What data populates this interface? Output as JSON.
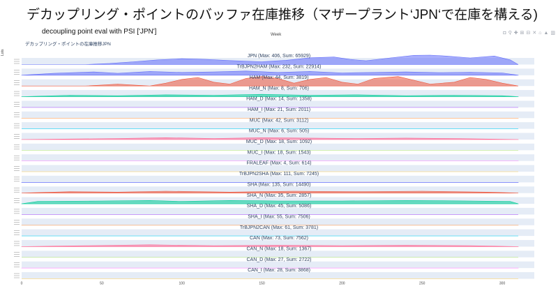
{
  "slide": {
    "title": "デカップリング・ポイントのバッファ在庫推移（マザープラント‘JPN‘で在庫を構える)",
    "subtitle": "decoupling point eval with PSI  ['JPN']"
  },
  "modebar": {
    "icons": [
      "camera-icon",
      "zoom-icon",
      "pan-icon",
      "zoom-in-icon",
      "zoom-out-icon",
      "autoscale-icon",
      "reset-axes-icon",
      "spike-lines-icon",
      "plotly-logo-icon"
    ],
    "glyphs": [
      "◘",
      "⚲",
      "✚",
      "⊞",
      "⊟",
      "✕",
      "⌂",
      "▲",
      "▥"
    ]
  },
  "chart_data": {
    "type": "area",
    "title": "デカップリング・ポイントの在庫推移JPN",
    "xlabel": "Week",
    "ylabel": "Lots",
    "xlim": [
      0,
      320
    ],
    "x_ticks": [
      0,
      50,
      100,
      150,
      200,
      250,
      300
    ],
    "data_x_range": [
      0,
      310
    ],
    "series": [
      {
        "name": "JPN",
        "max": 406,
        "sum": 65929,
        "label": "JPN (Max: 406, Sum: 65929)",
        "color": "#636efa",
        "profile": [
          [
            0,
            0
          ],
          [
            40,
            0
          ],
          [
            55,
            0.12
          ],
          [
            70,
            0.3
          ],
          [
            85,
            0.5
          ],
          [
            100,
            0.62
          ],
          [
            115,
            0.55
          ],
          [
            130,
            0.42
          ],
          [
            150,
            0.3
          ],
          [
            165,
            0.45
          ],
          [
            180,
            0.72
          ],
          [
            195,
            0.8
          ],
          [
            205,
            0.55
          ],
          [
            215,
            0.4
          ],
          [
            230,
            0.7
          ],
          [
            245,
            0.98
          ],
          [
            255,
            1.0
          ],
          [
            265,
            0.9
          ],
          [
            280,
            0.7
          ],
          [
            295,
            0.9
          ],
          [
            305,
            0.5
          ],
          [
            310,
            0
          ]
        ]
      },
      {
        "name": "TrBJPN2HAM",
        "max": 232,
        "sum": 22914,
        "label": "TrBJPN2HAM (Max: 232, Sum: 22914)",
        "color": "#636efa",
        "profile": [
          [
            0,
            0
          ],
          [
            20,
            0.2
          ],
          [
            45,
            0.35
          ],
          [
            60,
            0.2
          ],
          [
            80,
            0.4
          ],
          [
            100,
            0.3
          ],
          [
            120,
            0.35
          ],
          [
            140,
            0.45
          ],
          [
            160,
            0.3
          ],
          [
            180,
            0.4
          ],
          [
            200,
            0.25
          ],
          [
            220,
            0.3
          ],
          [
            240,
            0.35
          ],
          [
            260,
            0.28
          ],
          [
            280,
            0.32
          ],
          [
            300,
            0.25
          ],
          [
            310,
            0
          ]
        ]
      },
      {
        "name": "HAM",
        "max": 44,
        "sum": 3819,
        "label": "HAM (Max: 44, Sum: 3819)",
        "color": "#ef553b",
        "profile": [
          [
            0,
            0
          ],
          [
            40,
            0
          ],
          [
            50,
            0.1
          ],
          [
            60,
            0.2
          ],
          [
            70,
            0.1
          ],
          [
            80,
            0
          ],
          [
            90,
            0.3
          ],
          [
            100,
            0.7
          ],
          [
            110,
            0.9
          ],
          [
            120,
            0.4
          ],
          [
            130,
            0.2
          ],
          [
            140,
            0.8
          ],
          [
            150,
            1.0
          ],
          [
            160,
            0.8
          ],
          [
            170,
            0.3
          ],
          [
            180,
            0.7
          ],
          [
            190,
            0.9
          ],
          [
            200,
            0.4
          ],
          [
            210,
            0.2
          ],
          [
            220,
            0.8
          ],
          [
            235,
            1.0
          ],
          [
            245,
            0.6
          ],
          [
            255,
            0.2
          ],
          [
            270,
            0.4
          ],
          [
            280,
            0.9
          ],
          [
            290,
            0.7
          ],
          [
            300,
            0.3
          ],
          [
            310,
            0
          ]
        ]
      },
      {
        "name": "HAM_N",
        "max": 8,
        "sum": 706,
        "label": "HAM_N (Max: 8, Sum: 706)",
        "color": "#00cc96",
        "profile": [
          [
            0,
            0
          ],
          [
            30,
            0.15
          ],
          [
            60,
            0.1
          ],
          [
            90,
            0.2
          ],
          [
            120,
            0.15
          ],
          [
            150,
            0.25
          ],
          [
            180,
            0.15
          ],
          [
            210,
            0.2
          ],
          [
            240,
            0.1
          ],
          [
            270,
            0.15
          ],
          [
            300,
            0.1
          ],
          [
            310,
            0
          ]
        ]
      },
      {
        "name": "HAM_D",
        "max": 14,
        "sum": 1358,
        "label": "HAM_D (Max: 14, Sum: 1358)",
        "color": "#ab63fa",
        "profile": [
          [
            0,
            0
          ],
          [
            310,
            0
          ]
        ]
      },
      {
        "name": "HAM_I",
        "max": 21,
        "sum": 2011,
        "label": "HAM_I (Max: 21, Sum: 2011)",
        "color": "#ffa15a",
        "profile": [
          [
            0,
            0
          ],
          [
            310,
            0
          ]
        ]
      },
      {
        "name": "MUC",
        "max": 42,
        "sum": 3112,
        "label": "MUC (Max: 42, Sum: 3112)",
        "color": "#19d3f3",
        "profile": [
          [
            0,
            0
          ],
          [
            310,
            0
          ]
        ]
      },
      {
        "name": "MUC_N",
        "max": 6,
        "sum": 505,
        "label": "MUC_N (Max: 6, Sum: 505)",
        "color": "#ff6692",
        "profile": [
          [
            0,
            0
          ],
          [
            60,
            0.1
          ],
          [
            90,
            0.2
          ],
          [
            120,
            0.1
          ],
          [
            150,
            0.2
          ],
          [
            180,
            0.15
          ],
          [
            210,
            0.1
          ],
          [
            240,
            0.15
          ],
          [
            270,
            0.1
          ],
          [
            310,
            0
          ]
        ]
      },
      {
        "name": "MUC_D",
        "max": 18,
        "sum": 1092,
        "label": "MUC_D (Max: 18, Sum: 1092)",
        "color": "#b6e880",
        "profile": [
          [
            0,
            0
          ],
          [
            310,
            0
          ]
        ]
      },
      {
        "name": "MUC_I",
        "max": 18,
        "sum": 1543,
        "label": "MUC_I (Max: 18, Sum: 1543)",
        "color": "#ff97ff",
        "profile": [
          [
            0,
            0
          ],
          [
            310,
            0
          ]
        ]
      },
      {
        "name": "FRALEAF",
        "max": 4,
        "sum": 614,
        "label": "FRALEAF (Max: 4, Sum: 614)",
        "color": "#fecb52",
        "profile": [
          [
            0,
            0
          ],
          [
            310,
            0
          ]
        ]
      },
      {
        "name": "TrBJPN2SHA",
        "max": 111,
        "sum": 7245,
        "label": "TrBJPN2SHA (Max: 111, Sum: 7245)",
        "color": "#636efa",
        "profile": [
          [
            0,
            0
          ],
          [
            310,
            0
          ]
        ]
      },
      {
        "name": "SHA",
        "max": 135,
        "sum": 14490,
        "label": "SHA (Max: 135, Sum: 14490)",
        "color": "#ef553b",
        "profile": [
          [
            0,
            0
          ],
          [
            30,
            0.15
          ],
          [
            60,
            0.1
          ],
          [
            90,
            0.2
          ],
          [
            130,
            0.1
          ],
          [
            170,
            0.2
          ],
          [
            210,
            0.15
          ],
          [
            250,
            0.2
          ],
          [
            290,
            0.1
          ],
          [
            310,
            0
          ]
        ]
      },
      {
        "name": "SHA_N",
        "max": 35,
        "sum": 2857,
        "label": "SHA_N (Max: 35, Sum: 2857)",
        "color": "#00cc96",
        "profile": [
          [
            0,
            0
          ],
          [
            10,
            0.25
          ],
          [
            50,
            0.3
          ],
          [
            80,
            0.35
          ],
          [
            100,
            0.25
          ],
          [
            130,
            0.35
          ],
          [
            160,
            0.3
          ],
          [
            200,
            0.3
          ],
          [
            240,
            0.35
          ],
          [
            280,
            0.3
          ],
          [
            305,
            0.25
          ],
          [
            310,
            0
          ]
        ]
      },
      {
        "name": "SHA_D",
        "max": 45,
        "sum": 5086,
        "label": "SHA_D (Max: 45, Sum: 5086)",
        "color": "#ab63fa",
        "profile": [
          [
            0,
            0
          ],
          [
            310,
            0
          ]
        ]
      },
      {
        "name": "SHA_I",
        "max": 55,
        "sum": 7506,
        "label": "SHA_I (Max: 55, Sum: 7506)",
        "color": "#ffa15a",
        "profile": [
          [
            0,
            0
          ],
          [
            310,
            0
          ]
        ]
      },
      {
        "name": "TrBJPN2CAN",
        "max": 61,
        "sum": 3781,
        "label": "TrBJPN2CAN (Max: 61, Sum: 3781)",
        "color": "#19d3f3",
        "profile": [
          [
            0,
            0
          ],
          [
            310,
            0
          ]
        ]
      },
      {
        "name": "CAN",
        "max": 73,
        "sum": 7562,
        "label": "CAN (Max: 73, Sum: 7562)",
        "color": "#ff6692",
        "profile": [
          [
            0,
            0
          ],
          [
            40,
            0.1
          ],
          [
            80,
            0.2
          ],
          [
            120,
            0.1
          ],
          [
            160,
            0.15
          ],
          [
            200,
            0.1
          ],
          [
            240,
            0.15
          ],
          [
            280,
            0.1
          ],
          [
            310,
            0
          ]
        ]
      },
      {
        "name": "CAN_N",
        "max": 18,
        "sum": 1367,
        "label": "CAN_N (Max: 18, Sum: 1367)",
        "color": "#b6e880",
        "profile": [
          [
            0,
            0
          ],
          [
            310,
            0
          ]
        ]
      },
      {
        "name": "CAN_D",
        "max": 27,
        "sum": 2722,
        "label": "CAN_D (Max: 27, Sum: 2722)",
        "color": "#ff97ff",
        "profile": [
          [
            0,
            0
          ],
          [
            310,
            0
          ]
        ]
      },
      {
        "name": "CAN_I",
        "max": 28,
        "sum": 3868,
        "label": "CAN_I (Max: 28, Sum: 3868)",
        "color": "#fecb52",
        "profile": [
          [
            0,
            0
          ],
          [
            310,
            0
          ]
        ]
      }
    ]
  }
}
